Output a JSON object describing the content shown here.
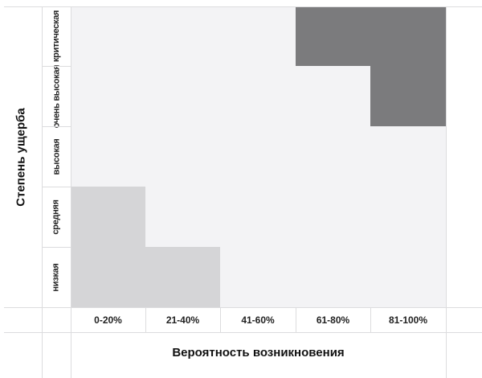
{
  "y_title": "Степень ущерба",
  "x_title": "Вероятность возникновения",
  "rows": [
    "критическая",
    "очень высокая",
    "высокая",
    "средняя",
    "низкая"
  ],
  "columns": [
    "0-20%",
    "21-40%",
    "41-60%",
    "61-80%",
    "81-100%"
  ],
  "levels": [
    [
      0,
      0,
      0,
      2,
      2
    ],
    [
      0,
      0,
      0,
      0,
      2
    ],
    [
      0,
      0,
      0,
      0,
      0
    ],
    [
      1,
      0,
      0,
      0,
      0
    ],
    [
      1,
      1,
      0,
      0,
      0
    ]
  ],
  "colors": {
    "0": "#f3f3f5",
    "1": "#d5d5d7",
    "2": "#7b7b7d"
  }
}
